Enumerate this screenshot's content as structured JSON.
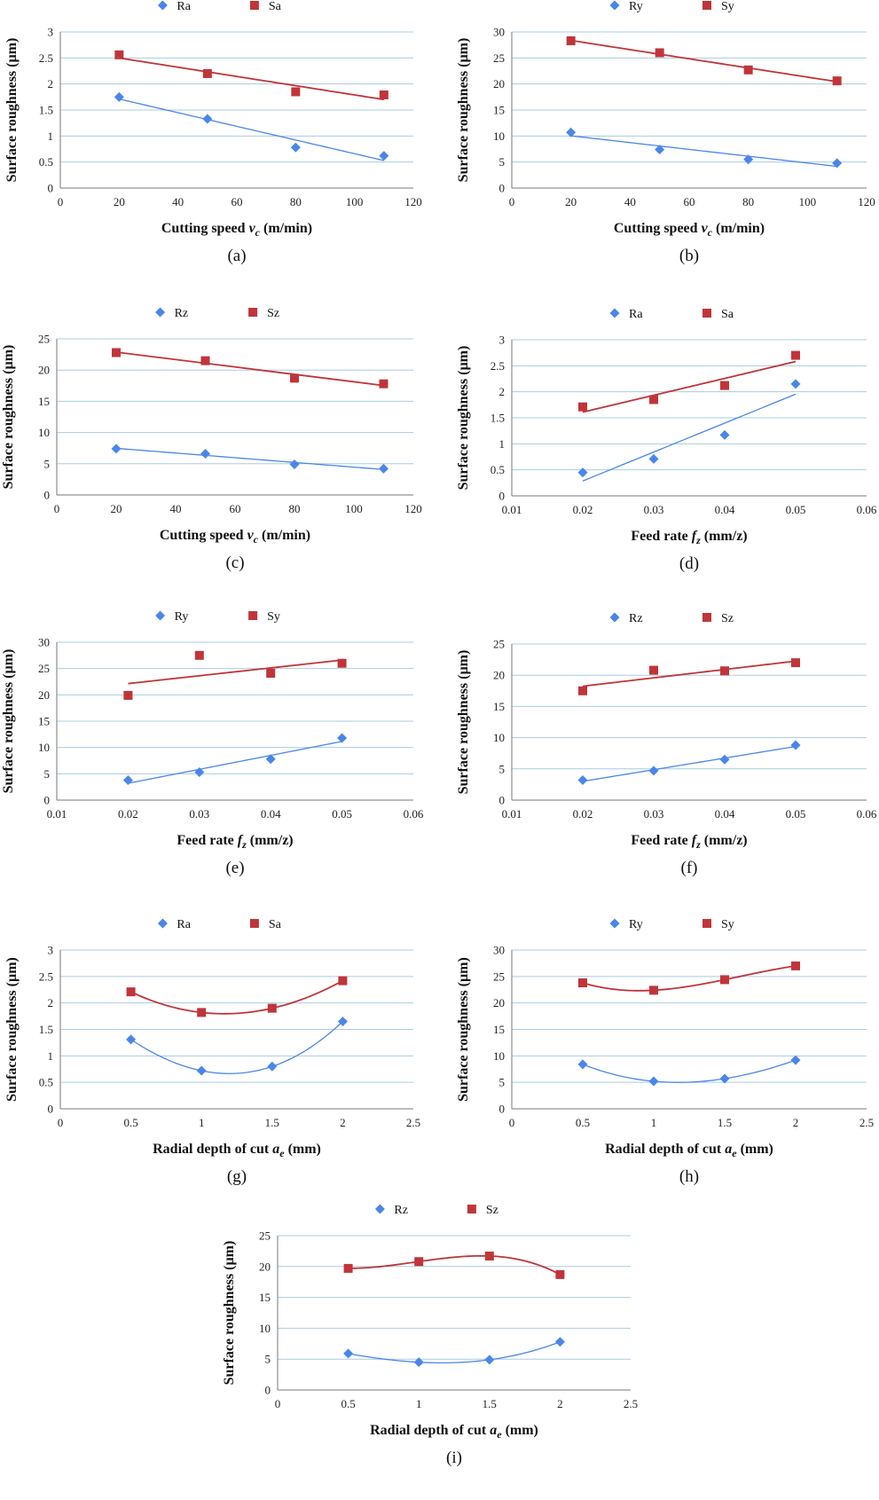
{
  "figure": {
    "colors": {
      "series1": "#4a86e8",
      "series2": "#c0353a",
      "grid": "#a9cce3"
    }
  },
  "chart_data": [
    {
      "type": "scatter",
      "panel_label": "(a)",
      "ylabel": "Surface roughness (µm)",
      "xlabel": "Cutting speed",
      "xvar": "v",
      "xsub": "c",
      "xunit": " (m/min)",
      "xlim": [
        0,
        120
      ],
      "xticks": [
        "0",
        "20",
        "40",
        "60",
        "80",
        "100",
        "120"
      ],
      "ylim": [
        0,
        3
      ],
      "yticks": [
        "0",
        "0.5",
        "1",
        "1.5",
        "2",
        "2.5",
        "3"
      ],
      "trend": "linear",
      "series": [
        {
          "name": "Ra",
          "marker": "diamond",
          "x": [
            20,
            50,
            80,
            110
          ],
          "y": [
            1.75,
            1.33,
            0.78,
            0.62
          ]
        },
        {
          "name": "Sa",
          "marker": "square",
          "x": [
            20,
            50,
            80,
            110
          ],
          "y": [
            2.56,
            2.2,
            1.85,
            1.79
          ]
        }
      ]
    },
    {
      "type": "scatter",
      "panel_label": "(b)",
      "ylabel": "Surface roughness (µm)",
      "xlabel": "Cutting speed",
      "xvar": "v",
      "xsub": "c",
      "xunit": " (m/min)",
      "xlim": [
        0,
        120
      ],
      "xticks": [
        "0",
        "20",
        "40",
        "60",
        "80",
        "100",
        "120"
      ],
      "ylim": [
        0,
        30
      ],
      "yticks": [
        "0",
        "5",
        "10",
        "15",
        "20",
        "25",
        "30"
      ],
      "trend": "linear",
      "series": [
        {
          "name": "Ry",
          "marker": "diamond",
          "x": [
            20,
            50,
            80,
            110
          ],
          "y": [
            10.7,
            7.4,
            5.5,
            4.8
          ]
        },
        {
          "name": "Sy",
          "marker": "square",
          "x": [
            20,
            50,
            80,
            110
          ],
          "y": [
            28.3,
            26.0,
            22.7,
            20.6
          ]
        }
      ]
    },
    {
      "type": "scatter",
      "panel_label": "(c)",
      "ylabel": "Surface roughness (µm)",
      "xlabel": "Cutting speed",
      "xvar": "v",
      "xsub": "c",
      "xunit": " (m/min)",
      "xlim": [
        0,
        120
      ],
      "xticks": [
        "0",
        "20",
        "40",
        "60",
        "80",
        "100",
        "120"
      ],
      "ylim": [
        0,
        25
      ],
      "yticks": [
        "0",
        "5",
        "10",
        "15",
        "20",
        "25"
      ],
      "trend": "linear",
      "series": [
        {
          "name": "Rz",
          "marker": "diamond",
          "x": [
            20,
            50,
            80,
            110
          ],
          "y": [
            7.4,
            6.6,
            4.9,
            4.2
          ]
        },
        {
          "name": "Sz",
          "marker": "square",
          "x": [
            20,
            50,
            80,
            110
          ],
          "y": [
            22.8,
            21.5,
            18.7,
            17.8
          ]
        }
      ]
    },
    {
      "type": "scatter",
      "panel_label": "(d)",
      "ylabel": "Surface roughness (µm)",
      "xlabel": "Feed rate",
      "xvar": "f",
      "xsub": "z",
      "xunit": " (mm/z)",
      "xlim": [
        0.01,
        0.06
      ],
      "xticks": [
        "0.01",
        "0.02",
        "0.03",
        "0.04",
        "0.05",
        "0.06"
      ],
      "ylim": [
        0,
        3
      ],
      "yticks": [
        "0",
        "0.5",
        "1",
        "1.5",
        "2",
        "2.5",
        "3"
      ],
      "trend": "linear",
      "series": [
        {
          "name": "Ra",
          "marker": "diamond",
          "x": [
            0.02,
            0.03,
            0.04,
            0.05
          ],
          "y": [
            0.45,
            0.71,
            1.17,
            2.15
          ]
        },
        {
          "name": "Sa",
          "marker": "square",
          "x": [
            0.02,
            0.03,
            0.04,
            0.05
          ],
          "y": [
            1.71,
            1.85,
            2.12,
            2.7
          ]
        }
      ]
    },
    {
      "type": "scatter",
      "panel_label": "(e)",
      "ylabel": "Surface roughness (µm)",
      "xlabel": "Feed rate",
      "xvar": "f",
      "xsub": "z",
      "xunit": " (mm/z)",
      "xlim": [
        0.01,
        0.06
      ],
      "xticks": [
        "0.01",
        "0.02",
        "0.03",
        "0.04",
        "0.05",
        "0.06"
      ],
      "ylim": [
        0,
        30
      ],
      "yticks": [
        "0",
        "5",
        "10",
        "15",
        "20",
        "25",
        "30"
      ],
      "trend": "linear",
      "series": [
        {
          "name": "Ry",
          "marker": "diamond",
          "x": [
            0.02,
            0.03,
            0.04,
            0.05
          ],
          "y": [
            3.8,
            5.3,
            7.8,
            11.8
          ]
        },
        {
          "name": "Sy",
          "marker": "square",
          "x": [
            0.02,
            0.03,
            0.04,
            0.05
          ],
          "y": [
            19.9,
            27.5,
            24.1,
            26.0
          ]
        }
      ]
    },
    {
      "type": "scatter",
      "panel_label": "(f)",
      "ylabel": "Surface roughness (µm)",
      "xlabel": "Feed rate",
      "xvar": "f",
      "xsub": "z",
      "xunit": " (mm/z)",
      "xlim": [
        0.01,
        0.06
      ],
      "xticks": [
        "0.01",
        "0.02",
        "0.03",
        "0.04",
        "0.05",
        "0.06"
      ],
      "ylim": [
        0,
        25
      ],
      "yticks": [
        "0",
        "5",
        "10",
        "15",
        "20",
        "25"
      ],
      "trend": "linear",
      "series": [
        {
          "name": "Rz",
          "marker": "diamond",
          "x": [
            0.02,
            0.03,
            0.04,
            0.05
          ],
          "y": [
            3.2,
            4.7,
            6.5,
            8.8
          ]
        },
        {
          "name": "Sz",
          "marker": "square",
          "x": [
            0.02,
            0.03,
            0.04,
            0.05
          ],
          "y": [
            17.5,
            20.8,
            20.7,
            22.0
          ]
        }
      ]
    },
    {
      "type": "scatter",
      "panel_label": "(g)",
      "ylabel": "Surface roughness (µm)",
      "xlabel": "Radial depth of cut",
      "xvar": "a",
      "xsub": "e",
      "xunit": " (mm)",
      "xlim": [
        0,
        2.5
      ],
      "xticks": [
        "0",
        "0.5",
        "1",
        "1.5",
        "2",
        "2.5"
      ],
      "ylim": [
        0,
        3
      ],
      "yticks": [
        "0",
        "0.5",
        "1",
        "1.5",
        "2",
        "2.5",
        "3"
      ],
      "trend": "poly3",
      "series": [
        {
          "name": "Ra",
          "marker": "diamond",
          "x": [
            0.5,
            1,
            1.5,
            2
          ],
          "y": [
            1.31,
            0.72,
            0.8,
            1.65
          ]
        },
        {
          "name": "Sa",
          "marker": "square",
          "x": [
            0.5,
            1,
            1.5,
            2
          ],
          "y": [
            2.21,
            1.82,
            1.9,
            2.42
          ]
        }
      ]
    },
    {
      "type": "scatter",
      "panel_label": "(h)",
      "ylabel": "Surface roughness (µm)",
      "xlabel": "Radial depth of cut",
      "xvar": "a",
      "xsub": "e",
      "xunit": " (mm)",
      "xlim": [
        0,
        2.5
      ],
      "xticks": [
        "0",
        "0.5",
        "1",
        "1.5",
        "2",
        "2.5"
      ],
      "ylim": [
        0,
        30
      ],
      "yticks": [
        "0",
        "5",
        "10",
        "15",
        "20",
        "25",
        "30"
      ],
      "trend": "poly3",
      "series": [
        {
          "name": "Ry",
          "marker": "diamond",
          "x": [
            0.5,
            1,
            1.5,
            2
          ],
          "y": [
            8.4,
            5.2,
            5.7,
            9.2
          ]
        },
        {
          "name": "Sy",
          "marker": "square",
          "x": [
            0.5,
            1,
            1.5,
            2
          ],
          "y": [
            23.8,
            22.4,
            24.4,
            27.0
          ]
        }
      ]
    },
    {
      "type": "scatter",
      "panel_label": "(i)",
      "ylabel": "Surface roughness (µm)",
      "xlabel": "Radial depth of cut",
      "xvar": "a",
      "xsub": "e",
      "xunit": " (mm)",
      "xlim": [
        0,
        2.5
      ],
      "xticks": [
        "0",
        "0.5",
        "1",
        "1.5",
        "2",
        "2.5"
      ],
      "ylim": [
        0,
        25
      ],
      "yticks": [
        "0",
        "5",
        "10",
        "15",
        "20",
        "25"
      ],
      "trend": "poly3",
      "series": [
        {
          "name": "Rz",
          "marker": "diamond",
          "x": [
            0.5,
            1,
            1.5,
            2
          ],
          "y": [
            5.9,
            4.5,
            4.9,
            7.8
          ]
        },
        {
          "name": "Sz",
          "marker": "square",
          "x": [
            0.5,
            1,
            1.5,
            2
          ],
          "y": [
            19.7,
            20.8,
            21.7,
            18.7
          ]
        }
      ]
    }
  ]
}
